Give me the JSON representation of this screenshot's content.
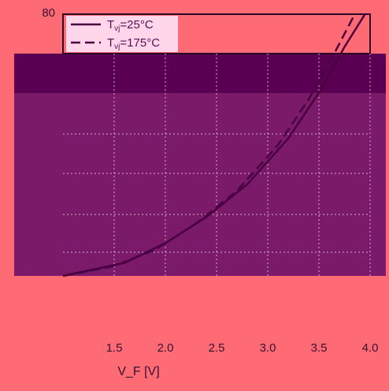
{
  "chart_data": {
    "type": "line",
    "title": "",
    "xlabel": "V_F [V]",
    "ylabel": "",
    "xlim": [
      1.0,
      4.0
    ],
    "ylim": [
      0,
      80
    ],
    "x_ticks": [
      "1.5",
      "2.0",
      "2.5",
      "3.0",
      "3.5",
      "4.0"
    ],
    "x_tick_values": [
      1.5,
      2.0,
      2.5,
      3.0,
      3.5,
      4.0
    ],
    "y_ticks": [
      "80"
    ],
    "grid": true,
    "legend": {
      "placement": "top-left"
    },
    "series": [
      {
        "name": "Tvj=25°C",
        "legend_label": "T",
        "legend_sub": "vj",
        "legend_suffix": "=25°C",
        "style": "solid",
        "color": "#4a0040",
        "x": [
          1.0,
          1.6,
          2.0,
          2.4,
          2.8,
          3.2,
          3.5,
          3.75,
          3.95
        ],
        "y": [
          0,
          4,
          10,
          18,
          28,
          42,
          56,
          70,
          80
        ]
      },
      {
        "name": "Tvj=175°C",
        "legend_label": "T",
        "legend_sub": "vj",
        "legend_suffix": "=175°C",
        "style": "dashed",
        "color": "#4a0040",
        "x": [
          1.0,
          1.5,
          1.9,
          2.3,
          2.7,
          3.1,
          3.4,
          3.65,
          3.85
        ],
        "y": [
          0,
          3,
          8,
          16,
          26,
          40,
          54,
          68,
          80
        ]
      }
    ]
  },
  "colors": {
    "background": "#ff6b74",
    "plot_fill": "#7b1a68",
    "plot_band_top": "#5a0052",
    "grid": "#d9a8d0",
    "frame": "#2a0a26",
    "legend_bg": "#ffd6ea"
  }
}
